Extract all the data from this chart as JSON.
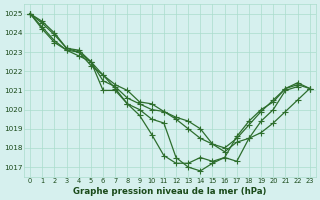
{
  "title": "Graphe pression niveau de la mer (hPa)",
  "bg_color": "#d6f0ee",
  "grid_color": "#aaddcc",
  "line_color": "#2d6e2d",
  "text_color": "#1a4a1a",
  "xlim": [
    -0.5,
    23.5
  ],
  "ylim": [
    1016.5,
    1025.5
  ],
  "yticks": [
    1017,
    1018,
    1019,
    1020,
    1021,
    1022,
    1023,
    1024,
    1025
  ],
  "xticks": [
    0,
    1,
    2,
    3,
    4,
    5,
    6,
    7,
    8,
    9,
    10,
    11,
    12,
    13,
    14,
    15,
    16,
    17,
    18,
    19,
    20,
    21,
    22,
    23
  ],
  "series": [
    {
      "x": [
        0,
        1,
        2,
        3,
        4,
        5,
        6,
        7,
        8,
        9,
        10,
        11,
        12,
        13,
        14,
        15,
        16,
        17,
        18,
        19,
        20,
        21,
        22
      ],
      "y": [
        1025.0,
        1024.6,
        1024.0,
        1023.2,
        1023.1,
        1022.5,
        1021.8,
        1021.1,
        1020.3,
        1020.0,
        1019.5,
        1019.3,
        1017.5,
        1017.0,
        1016.8,
        1017.2,
        1017.5,
        1017.3,
        1018.5,
        1019.4,
        1020.0,
        1021.0,
        1021.2
      ]
    },
    {
      "x": [
        0,
        1,
        2,
        3,
        4,
        5,
        6,
        7,
        8,
        9,
        10,
        11,
        12,
        13,
        14,
        15,
        16,
        17,
        18,
        19,
        20,
        21,
        22,
        23
      ],
      "y": [
        1025.0,
        1024.5,
        1023.9,
        1023.2,
        1023.0,
        1022.5,
        1021.0,
        1021.0,
        1020.3,
        1019.7,
        1018.7,
        1017.6,
        1017.2,
        1017.2,
        1017.5,
        1017.3,
        1017.5,
        1018.6,
        1019.4,
        1020.0,
        1020.4,
        1021.1,
        1021.4,
        1021.1
      ]
    },
    {
      "x": [
        0,
        1,
        2,
        3,
        4,
        5,
        6,
        7,
        8,
        9,
        10,
        11,
        12,
        13,
        14,
        15,
        16,
        17,
        18,
        19,
        20,
        21,
        22,
        23
      ],
      "y": [
        1025.0,
        1024.3,
        1023.6,
        1023.1,
        1023.0,
        1022.3,
        1021.8,
        1021.3,
        1021.0,
        1020.4,
        1020.3,
        1019.9,
        1019.6,
        1019.4,
        1019.0,
        1018.2,
        1017.8,
        1018.3,
        1018.5,
        1018.8,
        1019.3,
        1019.9,
        1020.5,
        1021.1
      ]
    },
    {
      "x": [
        0,
        1,
        2,
        3,
        4,
        5,
        6,
        7,
        8,
        9,
        10,
        11,
        12,
        13,
        14,
        15,
        16,
        17,
        18,
        19,
        20,
        21,
        22,
        23
      ],
      "y": [
        1025.0,
        1024.2,
        1023.5,
        1023.1,
        1022.8,
        1022.5,
        1021.5,
        1021.2,
        1020.6,
        1020.3,
        1020.0,
        1019.9,
        1019.5,
        1019.0,
        1018.5,
        1018.2,
        1018.0,
        1018.5,
        1019.2,
        1019.9,
        1020.5,
        1021.1,
        1021.3,
        1021.1
      ]
    }
  ],
  "marker": "+",
  "markersize": 4,
  "linewidth": 0.9
}
